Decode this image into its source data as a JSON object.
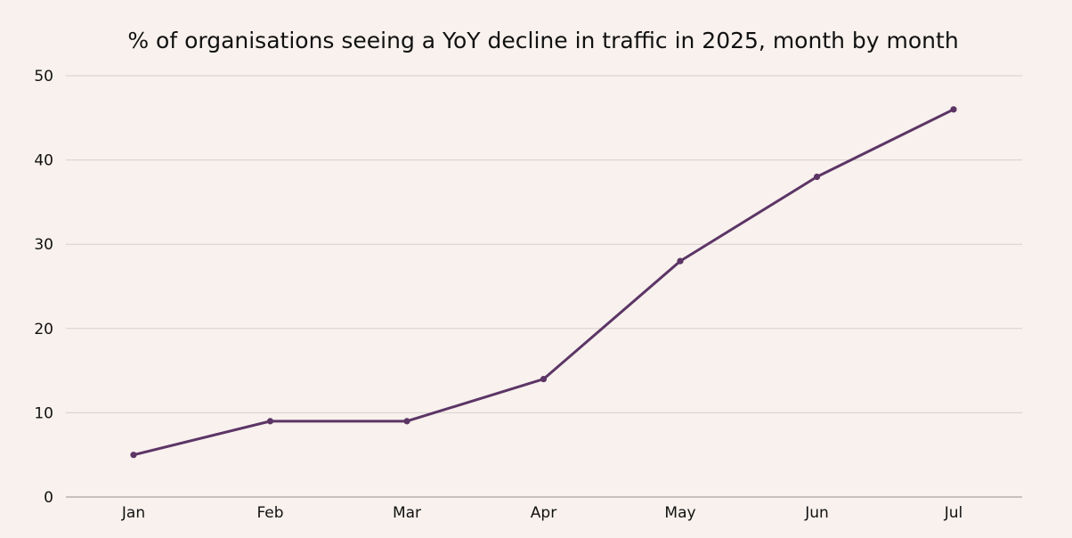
{
  "chart_data": {
    "type": "line",
    "title": "% of organisations seeing a YoY decline in traffic in 2025, month by month",
    "xlabel": "",
    "ylabel": "",
    "categories": [
      "Jan",
      "Feb",
      "Mar",
      "Apr",
      "May",
      "Jun",
      "Jul"
    ],
    "series": [
      {
        "name": "% of organisations",
        "values": [
          5,
          9,
          9,
          14,
          28,
          38,
          46
        ]
      }
    ],
    "ylim": [
      0,
      50
    ],
    "yticks": [
      "0",
      "10",
      "20",
      "30",
      "40",
      "50"
    ],
    "grid": true,
    "legend": "none",
    "colors": {
      "line": "#5c3566",
      "grid": "#d9cfcf",
      "axis": "#999090",
      "background": "#f8f1ed"
    }
  }
}
